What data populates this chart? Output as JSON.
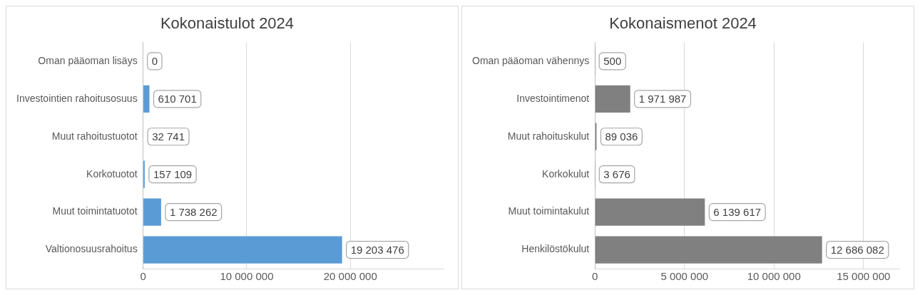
{
  "chart_data": [
    {
      "type": "bar",
      "orientation": "horizontal",
      "title": "Kokonaistulot 2024",
      "categories": [
        "Oman pääoman lisäys",
        "Investointien rahoitusosuus",
        "Muut rahoitustuotot",
        "Korkotuotot",
        "Muut toimintatuotot",
        "Valtionosuusrahoitus"
      ],
      "values": [
        0,
        610701,
        32741,
        157109,
        1738262,
        19203476
      ],
      "value_labels": [
        "0",
        "610 701",
        "32 741",
        "157 109",
        "1 738 262",
        "19 203 476"
      ],
      "color": "#5b9bd5",
      "xlim": [
        0,
        29000000
      ],
      "xticks": [
        0,
        {
          "value": 10000000,
          "label": "10 000 000"
        },
        {
          "value": 20000000,
          "label": "20 000 000"
        }
      ],
      "grid": "x",
      "legend": false
    },
    {
      "type": "bar",
      "orientation": "horizontal",
      "title": "Kokonaismenot 2024",
      "categories": [
        "Oman pääoman vähennys",
        "Investointimenot",
        "Muut rahoituskulut",
        "Korkokulut",
        "Muut toimintakulut",
        "Henkilöstökulut"
      ],
      "values": [
        500,
        1971987,
        89036,
        3676,
        6139617,
        12686082
      ],
      "value_labels": [
        "500",
        "1 971 987",
        "89 036",
        "3 676",
        "6 139 617",
        "12 686 082"
      ],
      "color": "#808080",
      "xlim": [
        0,
        17000000
      ],
      "xticks": [
        0,
        {
          "value": 5000000,
          "label": "5 000 000"
        },
        {
          "value": 10000000,
          "label": "10 000 000"
        },
        {
          "value": 15000000,
          "label": "15 000 000"
        }
      ],
      "grid": "x",
      "legend": false
    }
  ]
}
